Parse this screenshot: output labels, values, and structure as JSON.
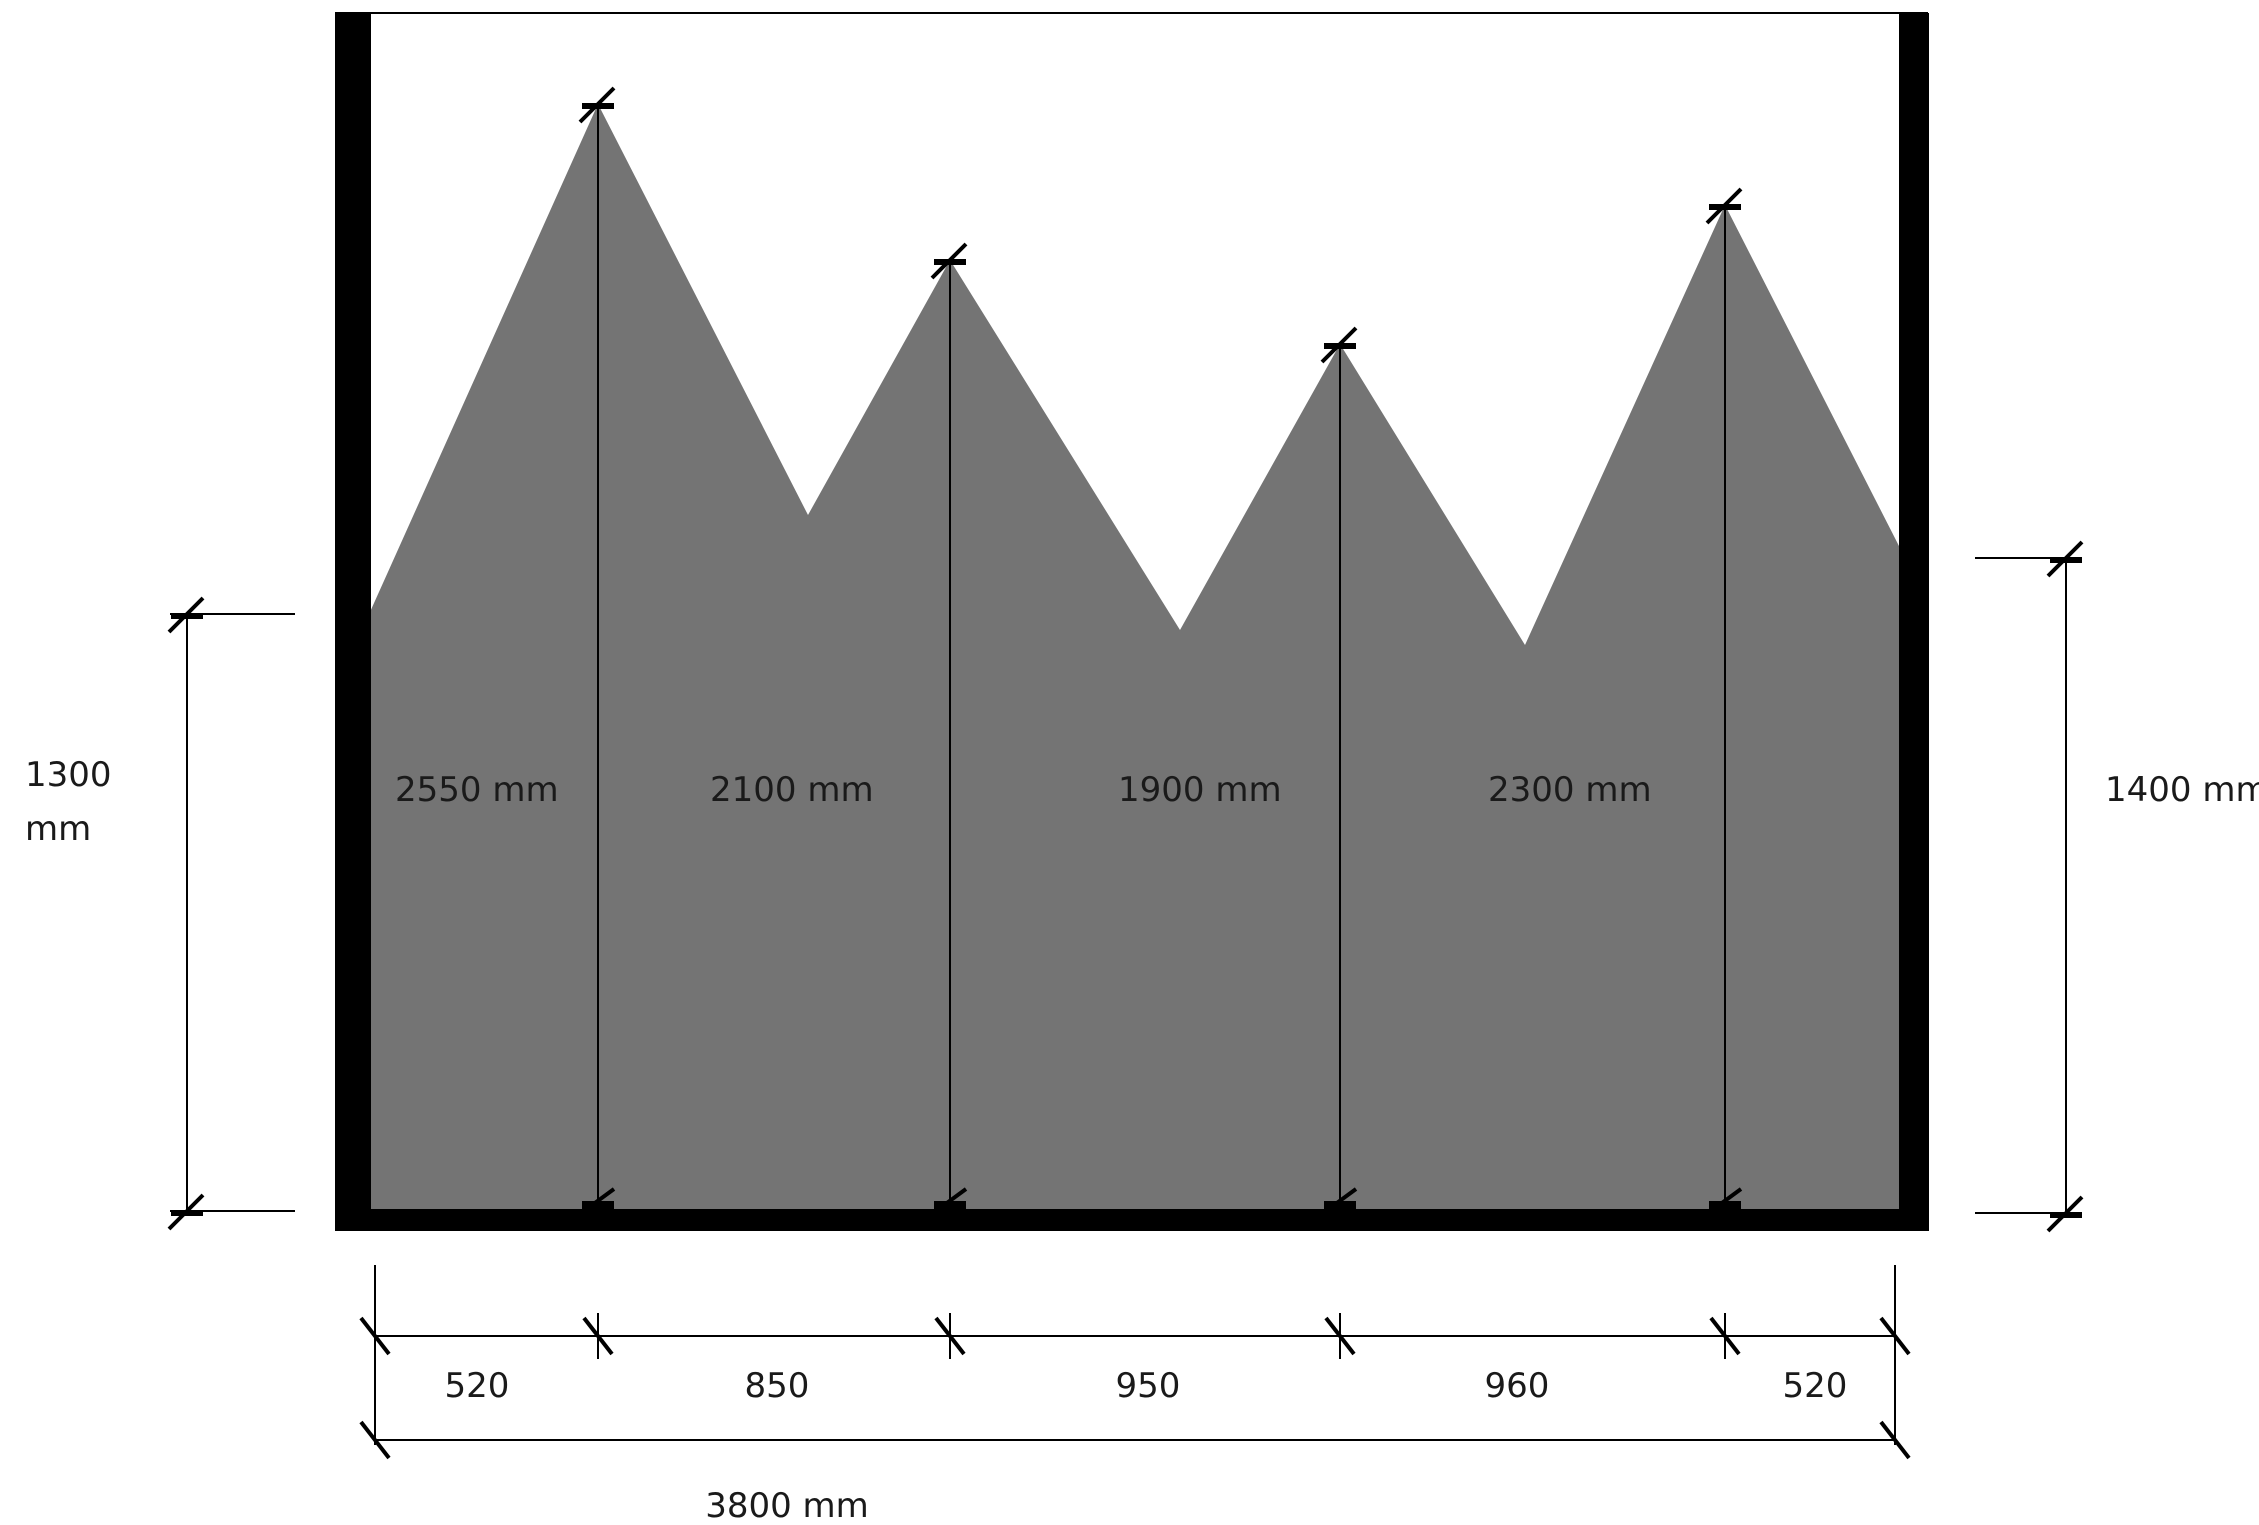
{
  "colors": {
    "fill": "#747474",
    "frame": "#000000",
    "background": "#ffffff"
  },
  "peaks": [
    {
      "height_label": "2550 mm"
    },
    {
      "height_label": "2100 mm"
    },
    {
      "height_label": "1900 mm"
    },
    {
      "height_label": "2300 mm"
    }
  ],
  "side_dimensions": {
    "left_value": "1300",
    "left_unit": "mm",
    "right_label": "1400 mm"
  },
  "bottom_segments": [
    "520",
    "850",
    "950",
    "960",
    "520"
  ],
  "total_width_label": "3800 mm"
}
